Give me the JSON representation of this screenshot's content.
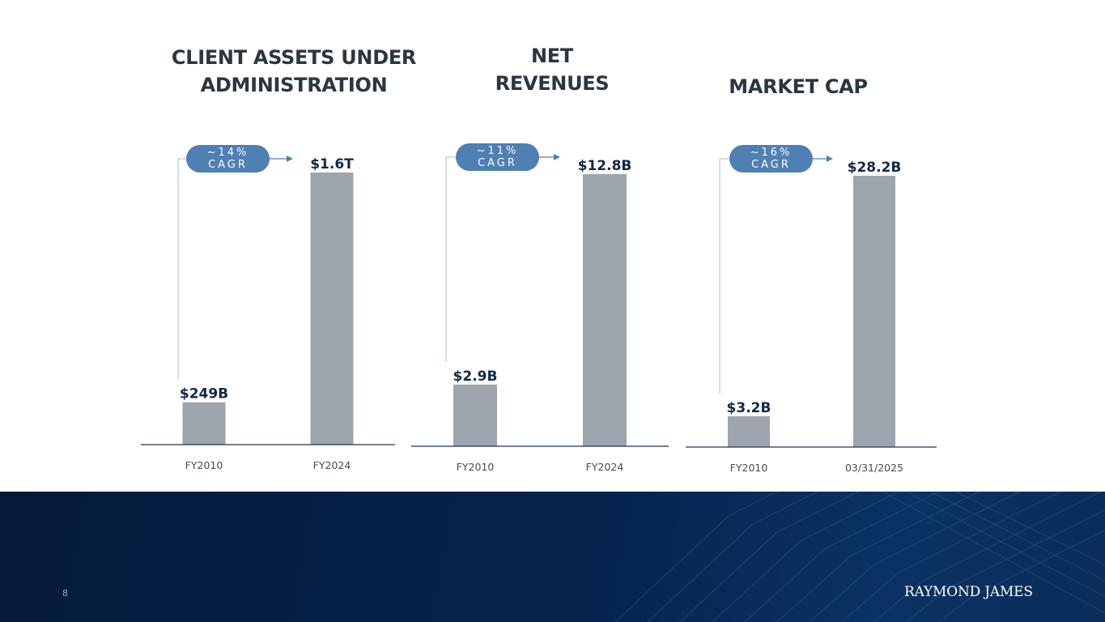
{
  "page_number": "8",
  "brand": "RAYMOND JAMES",
  "colors": {
    "bar": "#9ea4ad",
    "value_label": "#10284a",
    "axis_label": "#454d57",
    "baseline": "#1b3558",
    "pill": "#4f7fb3",
    "connector": "#a7bcd4",
    "footer": "#06244f"
  },
  "panels": [
    {
      "title_lines": [
        "CLIENT ASSETS UNDER",
        "ADMINISTRATION"
      ],
      "cagr": "~14%",
      "cagr_label": "CAGR"
    },
    {
      "title_lines": [
        "NET",
        "REVENUES"
      ],
      "cagr": "~11%",
      "cagr_label": "CAGR"
    },
    {
      "title_lines": [
        "MARKET CAP"
      ],
      "cagr": "~16%",
      "cagr_label": "CAGR"
    }
  ],
  "chart_data": [
    {
      "type": "bar",
      "title": "CLIENT ASSETS UNDER ADMINISTRATION",
      "categories": [
        "FY2010",
        "FY2024"
      ],
      "values": [
        249,
        1600
      ],
      "value_labels": [
        "$249B",
        "$1.6T"
      ],
      "unit": "$B",
      "annotation": "~14% CAGR"
    },
    {
      "type": "bar",
      "title": "NET REVENUES",
      "categories": [
        "FY2010",
        "FY2024"
      ],
      "values": [
        2.9,
        12.8
      ],
      "value_labels": [
        "$2.9B",
        "$12.8B"
      ],
      "unit": "$B",
      "annotation": "~11% CAGR"
    },
    {
      "type": "bar",
      "title": "MARKET CAP",
      "categories": [
        "FY2010",
        "03/31/2025"
      ],
      "values": [
        3.2,
        28.2
      ],
      "value_labels": [
        "$3.2B",
        "$28.2B"
      ],
      "unit": "$B",
      "annotation": "~16% CAGR"
    }
  ]
}
